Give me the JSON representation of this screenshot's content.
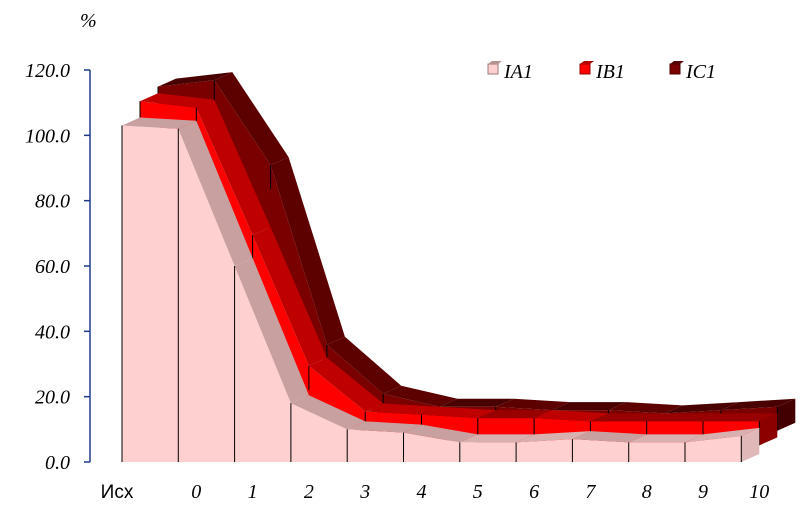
{
  "chart_data": {
    "type": "area",
    "unit_label": "%",
    "categories": [
      "Исх",
      "0",
      "1",
      "2",
      "3",
      "4",
      "5",
      "6",
      "7",
      "8",
      "9",
      "10"
    ],
    "ylim": [
      0,
      120
    ],
    "yticks": [
      "0.0",
      "20.0",
      "40.0",
      "60.0",
      "80.0",
      "100.0",
      "120.0"
    ],
    "ytick_values": [
      0,
      20,
      40,
      60,
      80,
      100,
      120
    ],
    "legend_placement": "top-right",
    "series": [
      {
        "name": "IA1",
        "color": "#ffd0d0",
        "values": [
          103,
          102,
          60,
          18,
          10,
          9,
          6,
          6,
          7,
          6,
          6,
          8
        ]
      },
      {
        "name": "IB1",
        "color": "#ff0000",
        "values": [
          108,
          106,
          67,
          27,
          13,
          12,
          11,
          11,
          10,
          10,
          10,
          10
        ]
      },
      {
        "name": "IC1",
        "color": "#7a0000",
        "values": [
          110,
          112,
          86,
          31,
          16,
          12,
          12,
          11,
          11,
          10,
          11,
          12
        ]
      }
    ]
  }
}
